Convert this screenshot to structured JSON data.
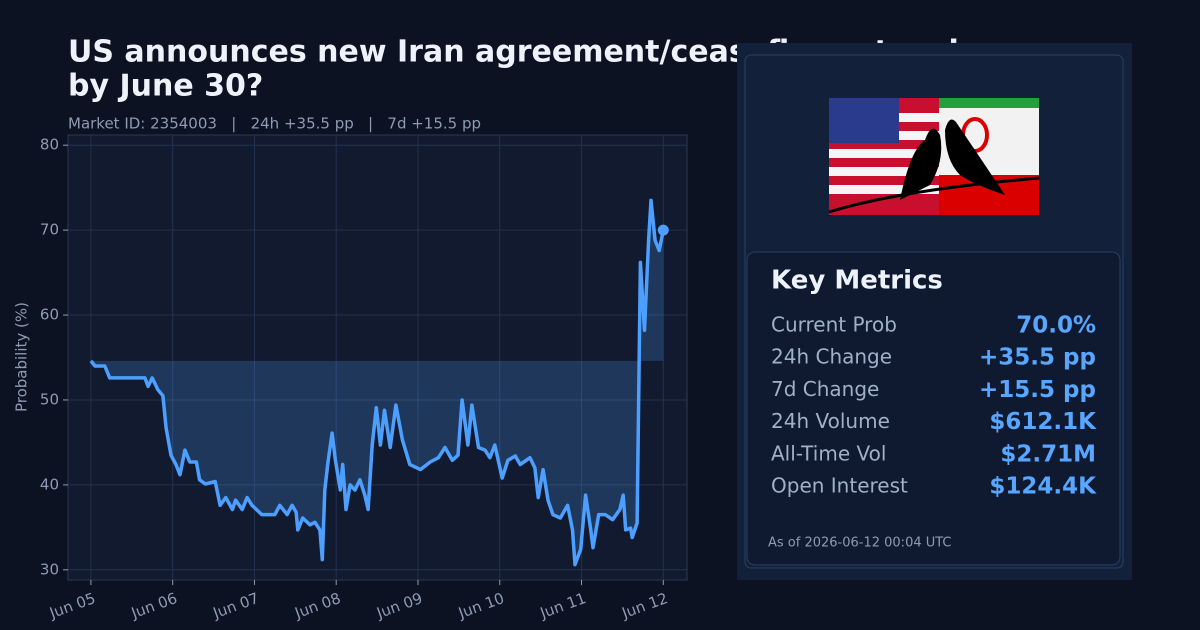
{
  "chart_data": {
    "type": "line",
    "title": [
      "US announces new Iran agreement/ceasefire extension",
      "by June 30?"
    ],
    "subtitle": "Market ID: 2354003   |   24h +35.5 pp   |   7d +15.5 pp",
    "y_label": "Probability (%)",
    "color": "#4d9fff",
    "grid": true,
    "xlim": [
      -0.28,
      7.29
    ],
    "ylim": [
      28.8,
      81.2
    ],
    "yticks": [
      30,
      40,
      50,
      60,
      70,
      80
    ],
    "xticks": [
      {
        "value": 0,
        "label": "Jun 05"
      },
      {
        "value": 1,
        "label": "Jun 06"
      },
      {
        "value": 2,
        "label": "Jun 07"
      },
      {
        "value": 3,
        "label": "Jun 08"
      },
      {
        "value": 4,
        "label": "Jun 09"
      },
      {
        "value": 5,
        "label": "Jun 10"
      },
      {
        "value": 6,
        "label": "Jun 11"
      },
      {
        "value": 7,
        "label": "Jun 12"
      }
    ],
    "x": [
      0,
      0.05,
      0.17,
      0.23,
      0.66,
      0.7,
      0.75,
      0.82,
      0.88,
      0.92,
      0.98,
      1.04,
      1.09,
      1.15,
      1.21,
      1.29,
      1.33,
      1.4,
      1.52,
      1.58,
      1.65,
      1.73,
      1.77,
      1.85,
      1.91,
      1.97,
      2.09,
      2.25,
      2.31,
      2.4,
      2.46,
      2.51,
      2.53,
      2.59,
      2.68,
      2.74,
      2.8,
      2.83,
      2.86,
      2.9,
      2.95,
      2.99,
      3.05,
      3.08,
      3.12,
      3.17,
      3.23,
      3.29,
      3.35,
      3.39,
      3.44,
      3.49,
      3.54,
      3.59,
      3.66,
      3.73,
      3.81,
      3.9,
      4.03,
      4.15,
      4.25,
      4.33,
      4.42,
      4.49,
      4.54,
      4.61,
      4.66,
      4.74,
      4.82,
      4.88,
      4.94,
      5.03,
      5.1,
      5.19,
      5.25,
      5.37,
      5.43,
      5.47,
      5.53,
      5.59,
      5.65,
      5.74,
      5.83,
      5.89,
      5.92,
      5.99,
      6.05,
      6.11,
      6.14,
      6.21,
      6.29,
      6.38,
      6.47,
      6.51,
      6.54,
      6.6,
      6.62,
      6.68,
      6.72,
      6.77,
      6.82,
      6.85,
      6.9,
      6.95,
      7.0
    ],
    "values": [
      54.6,
      54.0,
      54.0,
      52.6,
      52.6,
      51.6,
      52.6,
      51.2,
      50.5,
      46.7,
      43.5,
      42.4,
      41.2,
      44.1,
      42.7,
      42.7,
      40.6,
      40.1,
      40.4,
      37.6,
      38.5,
      37.1,
      38.2,
      37.1,
      38.5,
      37.6,
      36.5,
      36.5,
      37.6,
      36.5,
      37.6,
      36.8,
      34.7,
      36.1,
      35.3,
      35.6,
      34.7,
      31.2,
      39.4,
      42.7,
      46.1,
      42.9,
      39.4,
      42.4,
      37.1,
      40.0,
      39.4,
      40.6,
      38.8,
      37.1,
      44.7,
      49.1,
      44.7,
      48.8,
      44.4,
      49.4,
      45.3,
      42.4,
      41.8,
      42.7,
      43.2,
      44.4,
      42.9,
      43.5,
      50.0,
      44.7,
      49.4,
      44.4,
      44.1,
      43.2,
      44.7,
      40.8,
      42.9,
      43.4,
      42.4,
      43.2,
      42.0,
      38.5,
      41.8,
      38.2,
      36.5,
      36.1,
      37.6,
      34.7,
      30.6,
      32.4,
      38.8,
      34.9,
      32.6,
      36.5,
      36.5,
      35.9,
      37.1,
      38.8,
      34.7,
      34.9,
      33.8,
      35.5,
      66.2,
      58.2,
      68.8,
      73.5,
      68.8,
      67.6,
      70.0
    ]
  },
  "metrics": {
    "title": "Key Metrics",
    "rows": [
      {
        "label": "Current Prob",
        "value": "70.0%"
      },
      {
        "label": "24h Change",
        "value": "+35.5 pp"
      },
      {
        "label": "7d Change",
        "value": "+15.5 pp"
      },
      {
        "label": "24h Volume",
        "value": "$612.1K"
      },
      {
        "label": "All-Time Vol",
        "value": "$2.71M"
      },
      {
        "label": "Open Interest",
        "value": "$124.4K"
      }
    ],
    "as_of": "As of 2026-06-12 00:04 UTC"
  }
}
